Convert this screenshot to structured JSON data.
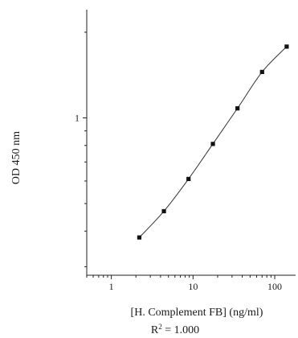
{
  "chart_data": {
    "type": "scatter",
    "title": "",
    "xlabel": "[H. Complement FB] (ng/ml)",
    "ylabel": "OD 450 nm",
    "x_scale": "log",
    "y_scale": "log",
    "xlim": [
      0.5,
      180
    ],
    "ylim": [
      0.28,
      2.4
    ],
    "x_ticks": [
      1,
      10,
      100
    ],
    "x_tick_labels": [
      "1",
      "10",
      "100"
    ],
    "y_ticks": [
      1
    ],
    "y_tick_labels": [
      "1"
    ],
    "grid": false,
    "series": [
      {
        "x": [
          2.2,
          4.4,
          8.8,
          17.5,
          35,
          70,
          140
        ],
        "y": [
          0.38,
          0.47,
          0.61,
          0.81,
          1.08,
          1.45,
          1.78
        ],
        "marker": "square",
        "fit_line": true
      }
    ],
    "annotation_base": "R",
    "annotation_sup": "2",
    "annotation_value": " = 1.000"
  }
}
